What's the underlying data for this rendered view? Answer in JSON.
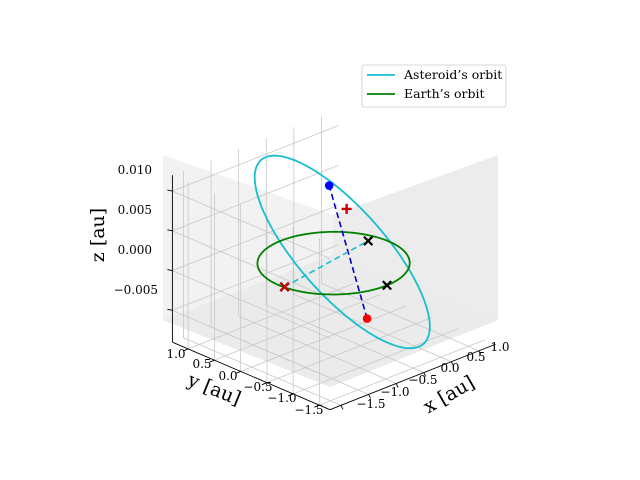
{
  "chart_data": {
    "type": "line",
    "projection": "3d",
    "xlabel": "x [au]",
    "ylabel": "y [au]",
    "zlabel": "z [au]",
    "x_ticks": [
      "−1.5",
      "−1.0",
      "−0.5",
      "0.0",
      "0.5",
      "1.0"
    ],
    "y_ticks": [
      "1.0",
      "0.5",
      "0.0",
      "−0.5",
      "−1.0",
      "−1.5"
    ],
    "z_ticks": [
      "0.010",
      "0.005",
      "0.000",
      "−0.005"
    ],
    "xlim": [
      -1.7,
      1.3
    ],
    "ylim": [
      -1.7,
      1.3
    ],
    "zlim": [
      -0.009,
      0.012
    ],
    "grid": true,
    "legend_position": "top-right",
    "legend": [
      {
        "label": "Asteroid’s orbit",
        "color": "#17becf"
      },
      {
        "label": "Earth’s orbit",
        "color": "#008000"
      }
    ],
    "series": [
      {
        "name": "Asteroid’s orbit",
        "color": "#17becf",
        "style": "solid",
        "orbit": {
          "a": 1.2,
          "e": 0.3,
          "inclination_deg": 0.5,
          "node_deg": 30,
          "perihelion_deg": 180
        }
      },
      {
        "name": "Earth’s orbit",
        "color": "#008000",
        "style": "solid",
        "orbit": {
          "a": 1.0,
          "e": 0.0167,
          "inclination_deg": 0.0,
          "node_deg": 0,
          "perihelion_deg": 0
        }
      }
    ],
    "segments": [
      {
        "from": [
          -0.57,
          -1.22,
          -0.002
        ],
        "to": [
          0.95,
          1.1,
          0.004
        ],
        "color": "#0000cc",
        "style": "dashed"
      },
      {
        "from": [
          -1.0,
          -0.1,
          0.0
        ],
        "to": [
          0.8,
          0.2,
          0.0
        ],
        "color": "#17becf",
        "style": "dashed"
      }
    ],
    "markers": [
      {
        "x": -0.57,
        "y": -1.22,
        "z": -0.002,
        "color": "#ff0000",
        "symbol": "circle"
      },
      {
        "x": 0.95,
        "y": 1.1,
        "z": 0.004,
        "color": "#0000ff",
        "symbol": "circle"
      },
      {
        "x": 0.6,
        "y": 0.4,
        "z": 0.004,
        "color": "#cc0000",
        "symbol": "plus"
      },
      {
        "x": -1.0,
        "y": -0.1,
        "z": 0.0,
        "color": "#000000",
        "symbol": "x"
      },
      {
        "x": -1.0,
        "y": -0.1,
        "z": 0.0,
        "color": "#cc0000",
        "symbol": "x"
      },
      {
        "x": 0.8,
        "y": 0.2,
        "z": 0.0,
        "color": "#000000",
        "symbol": "x"
      },
      {
        "x": 0.0,
        "y": -1.0,
        "z": 0.0,
        "color": "#000000",
        "symbol": "x"
      }
    ]
  }
}
